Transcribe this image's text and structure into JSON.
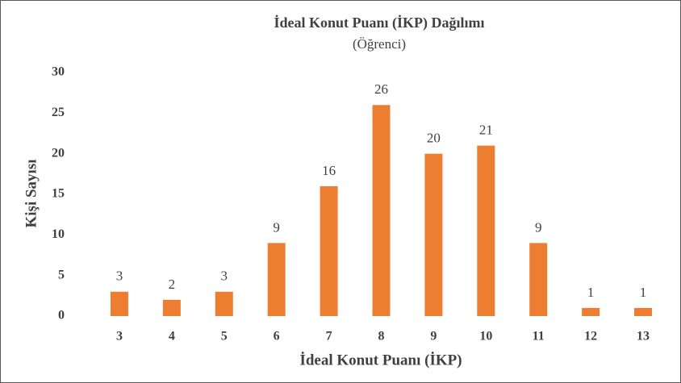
{
  "chart_data": {
    "type": "bar",
    "title": "İdeal Konut Puanı (İKP) Dağılımı",
    "subtitle": "(Öğrenci)",
    "x_label": "İdeal Konut Puanı (İKP)",
    "y_label": "Kişi Sayısı",
    "categories": [
      "3",
      "4",
      "5",
      "6",
      "7",
      "8",
      "9",
      "10",
      "11",
      "12",
      "13"
    ],
    "values": [
      3,
      2,
      3,
      9,
      16,
      26,
      20,
      21,
      9,
      1,
      1
    ],
    "color": "#ed7d31",
    "ylim": [
      0,
      30
    ],
    "yticks": [
      0,
      5,
      10,
      15,
      20,
      25,
      30
    ],
    "grid": false
  }
}
